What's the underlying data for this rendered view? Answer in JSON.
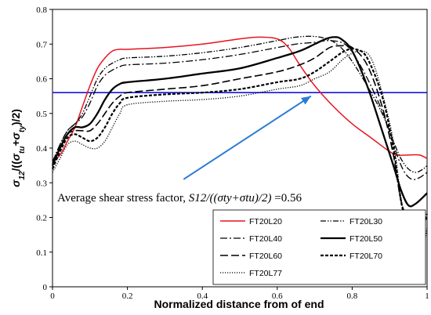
{
  "chart_data": {
    "type": "line",
    "xlabel": "Normalized distance from of end",
    "ylabel_parts": [
      {
        "t": "σ",
        "it": true,
        "sub": false
      },
      {
        "t": "12",
        "it": true,
        "sub": true
      },
      {
        "t": "/((",
        "it": false,
        "sub": false
      },
      {
        "t": "σ",
        "it": true,
        "sub": false
      },
      {
        "t": "tu",
        "it": true,
        "sub": true
      },
      {
        "t": "+",
        "it": false,
        "sub": false
      },
      {
        "t": "σ",
        "it": true,
        "sub": false
      },
      {
        "t": "ty",
        "it": true,
        "sub": true
      },
      {
        "t": ")/2)",
        "it": false,
        "sub": false
      }
    ],
    "xlim": [
      0,
      1
    ],
    "ylim": [
      0,
      0.8
    ],
    "xticks": [
      "0",
      "0.2",
      "0.4",
      "0.6",
      "0.8",
      "1"
    ],
    "yticks": [
      "0",
      "0.1",
      "0.2",
      "0.3",
      "0.4",
      "0.5",
      "0.6",
      "0.7",
      "0.8"
    ],
    "grid": false,
    "legend_position": "bottom-right, two columns",
    "annotation": {
      "prefix": "Average shear stress factor, ",
      "italic": "S12/((σty+σtu)/2)",
      "suffix": " =0.56",
      "arrow_from": [
        0.35,
        0.31
      ],
      "arrow_to": [
        0.69,
        0.55
      ]
    },
    "reference_line": {
      "y": 0.56,
      "color": "#1414e0"
    },
    "series": [
      {
        "name": "FT20L20",
        "color": "#e8141e",
        "dash": "",
        "width": 1.5,
        "x": [
          0,
          0.02,
          0.04,
          0.06,
          0.08,
          0.1,
          0.12,
          0.14,
          0.16,
          0.18,
          0.2,
          0.3,
          0.4,
          0.5,
          0.55,
          0.6,
          0.63,
          0.66,
          0.7,
          0.75,
          0.8,
          0.85,
          0.9,
          0.92,
          0.95,
          0.98,
          1
        ],
        "y": [
          0.36,
          0.38,
          0.42,
          0.46,
          0.52,
          0.58,
          0.63,
          0.66,
          0.68,
          0.685,
          0.685,
          0.69,
          0.7,
          0.715,
          0.72,
          0.715,
          0.69,
          0.64,
          0.58,
          0.52,
          0.47,
          0.43,
          0.39,
          0.38,
          0.38,
          0.38,
          0.37
        ]
      },
      {
        "name": "FT20L30",
        "color": "#000000",
        "dash": "7 2 1.5 2 1.5 2",
        "width": 1.3,
        "x": [
          0,
          0.02,
          0.04,
          0.06,
          0.08,
          0.1,
          0.12,
          0.14,
          0.16,
          0.18,
          0.2,
          0.3,
          0.4,
          0.5,
          0.6,
          0.65,
          0.7,
          0.74,
          0.77,
          0.8,
          0.84,
          0.88,
          0.91,
          0.93,
          0.95,
          0.97,
          0.99,
          1
        ],
        "y": [
          0.36,
          0.41,
          0.45,
          0.47,
          0.5,
          0.55,
          0.6,
          0.63,
          0.645,
          0.655,
          0.66,
          0.665,
          0.675,
          0.69,
          0.71,
          0.72,
          0.722,
          0.712,
          0.69,
          0.65,
          0.58,
          0.5,
          0.42,
          0.37,
          0.34,
          0.33,
          0.34,
          0.35
        ]
      },
      {
        "name": "FT20L40",
        "color": "#000000",
        "dash": "9 3 2 3",
        "width": 1.3,
        "x": [
          0,
          0.02,
          0.04,
          0.06,
          0.08,
          0.1,
          0.12,
          0.14,
          0.16,
          0.18,
          0.2,
          0.3,
          0.4,
          0.5,
          0.6,
          0.65,
          0.7,
          0.74,
          0.78,
          0.81,
          0.85,
          0.89,
          0.92,
          0.94,
          0.96,
          0.98,
          1
        ],
        "y": [
          0.36,
          0.41,
          0.45,
          0.47,
          0.49,
          0.53,
          0.58,
          0.61,
          0.625,
          0.635,
          0.64,
          0.645,
          0.655,
          0.67,
          0.69,
          0.7,
          0.705,
          0.71,
          0.7,
          0.66,
          0.58,
          0.48,
          0.38,
          0.33,
          0.31,
          0.315,
          0.33
        ]
      },
      {
        "name": "FT20L50",
        "color": "#000000",
        "dash": "",
        "width": 2.3,
        "x": [
          0,
          0.02,
          0.04,
          0.06,
          0.08,
          0.1,
          0.12,
          0.14,
          0.16,
          0.18,
          0.2,
          0.3,
          0.4,
          0.5,
          0.6,
          0.66,
          0.7,
          0.73,
          0.75,
          0.77,
          0.8,
          0.84,
          0.88,
          0.91,
          0.93,
          0.95,
          0.97,
          1
        ],
        "y": [
          0.35,
          0.4,
          0.44,
          0.46,
          0.46,
          0.47,
          0.5,
          0.54,
          0.57,
          0.585,
          0.59,
          0.6,
          0.615,
          0.63,
          0.66,
          0.68,
          0.7,
          0.715,
          0.72,
          0.715,
          0.68,
          0.58,
          0.45,
          0.35,
          0.28,
          0.235,
          0.24,
          0.27
        ]
      },
      {
        "name": "FT20L60",
        "color": "#000000",
        "dash": "10 4",
        "width": 1.6,
        "x": [
          0,
          0.02,
          0.04,
          0.06,
          0.08,
          0.1,
          0.12,
          0.14,
          0.16,
          0.18,
          0.2,
          0.3,
          0.4,
          0.5,
          0.6,
          0.66,
          0.7,
          0.74,
          0.77,
          0.8,
          0.84,
          0.88,
          0.91,
          0.93,
          0.95,
          0.97,
          1
        ],
        "y": [
          0.35,
          0.4,
          0.44,
          0.45,
          0.45,
          0.45,
          0.47,
          0.5,
          0.53,
          0.55,
          0.56,
          0.57,
          0.58,
          0.6,
          0.62,
          0.64,
          0.66,
          0.69,
          0.695,
          0.69,
          0.64,
          0.52,
          0.38,
          0.25,
          0.19,
          0.16,
          0.2
        ]
      },
      {
        "name": "FT20L70",
        "color": "#000000",
        "dash": "4 2",
        "width": 2.2,
        "x": [
          0,
          0.02,
          0.04,
          0.06,
          0.08,
          0.1,
          0.12,
          0.14,
          0.16,
          0.18,
          0.2,
          0.3,
          0.4,
          0.5,
          0.6,
          0.66,
          0.7,
          0.74,
          0.78,
          0.81,
          0.84,
          0.88,
          0.91,
          0.93,
          0.95,
          0.96,
          0.98,
          1
        ],
        "y": [
          0.34,
          0.39,
          0.43,
          0.44,
          0.43,
          0.42,
          0.43,
          0.46,
          0.5,
          0.53,
          0.545,
          0.555,
          0.56,
          0.57,
          0.59,
          0.6,
          0.62,
          0.65,
          0.68,
          0.685,
          0.66,
          0.55,
          0.4,
          0.25,
          0.16,
          0.14,
          0.17,
          0.21
        ]
      },
      {
        "name": "FT20L77",
        "color": "#000000",
        "dash": "1.2 1.8",
        "width": 1.3,
        "x": [
          0,
          0.02,
          0.04,
          0.06,
          0.08,
          0.1,
          0.12,
          0.14,
          0.16,
          0.18,
          0.2,
          0.3,
          0.4,
          0.5,
          0.6,
          0.66,
          0.7,
          0.74,
          0.78,
          0.82,
          0.85,
          0.88,
          0.91,
          0.93,
          0.95,
          0.97,
          0.99,
          1
        ],
        "y": [
          0.33,
          0.37,
          0.41,
          0.42,
          0.41,
          0.4,
          0.4,
          0.42,
          0.46,
          0.5,
          0.525,
          0.535,
          0.54,
          0.55,
          0.57,
          0.58,
          0.6,
          0.62,
          0.66,
          0.68,
          0.66,
          0.56,
          0.42,
          0.26,
          0.15,
          0.11,
          0.12,
          0.17
        ]
      }
    ]
  }
}
